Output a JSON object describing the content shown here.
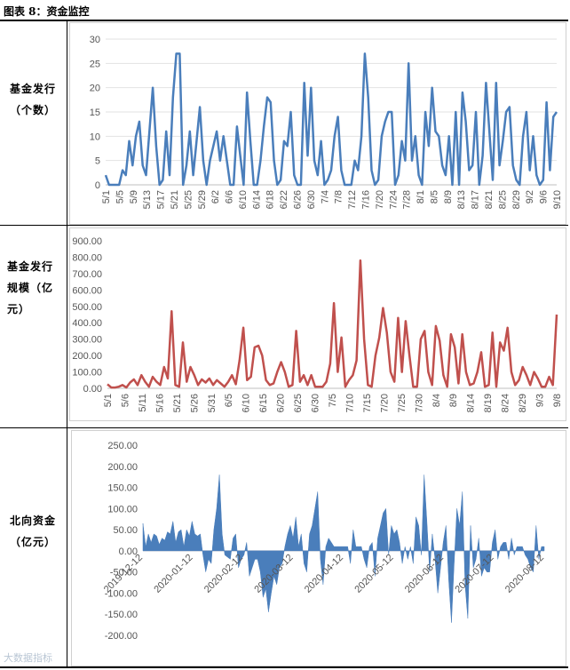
{
  "caption": "图表 8：资金监控",
  "rows": [
    {
      "label_lines": [
        "基金发行",
        "（个数）"
      ]
    },
    {
      "label_lines": [
        "基金发行",
        "规模（亿",
        "元）"
      ]
    },
    {
      "label_lines": [
        "北向资金",
        "（亿元）"
      ]
    }
  ],
  "watermark": "大数据指标",
  "chart_data": [
    {
      "type": "line",
      "title": "基金发行（个数）",
      "color": "#4a7ebb",
      "ylim": [
        0,
        30
      ],
      "yticks": [
        0,
        5,
        10,
        15,
        20,
        25,
        30
      ],
      "y_tick_labels": [
        "0",
        "5",
        "10",
        "15",
        "20",
        "25",
        "30"
      ],
      "x_tick_labels": [
        "5/1",
        "5/5",
        "5/9",
        "5/13",
        "5/17",
        "5/21",
        "5/25",
        "5/29",
        "6/2",
        "6/6",
        "6/10",
        "6/14",
        "6/18",
        "6/22",
        "6/26",
        "6/30",
        "7/4",
        "7/8",
        "7/12",
        "7/16",
        "7/20",
        "7/24",
        "7/28",
        "8/1",
        "8/5",
        "8/9",
        "8/13",
        "8/17",
        "8/21",
        "8/25",
        "8/29",
        "9/2",
        "9/6",
        "9/10"
      ],
      "values": [
        2,
        0,
        0,
        0,
        0,
        3,
        2,
        9,
        4,
        10,
        13,
        4,
        2,
        11,
        20,
        8,
        0,
        1,
        11,
        2,
        18,
        27,
        27,
        0,
        4,
        11,
        2,
        9,
        16,
        5,
        0,
        5,
        8,
        11,
        5,
        10,
        5,
        0,
        0,
        12,
        6,
        0,
        19,
        9,
        0,
        0,
        5,
        12,
        18,
        17,
        5,
        0,
        1,
        9,
        8,
        15,
        2,
        0,
        0,
        21,
        6,
        20,
        5,
        2,
        9,
        0,
        1,
        3,
        10,
        14,
        3,
        0,
        0,
        0,
        5,
        3,
        10,
        27,
        18,
        3,
        0,
        1,
        10,
        13,
        15,
        15,
        0,
        2,
        9,
        5,
        25,
        5,
        10,
        2,
        0,
        15,
        8,
        20,
        11,
        10,
        4,
        2,
        10,
        0,
        15,
        0,
        19,
        13,
        3,
        4,
        15,
        0,
        6,
        21,
        11,
        1,
        21,
        4,
        9,
        15,
        16,
        4,
        1,
        0,
        10,
        15,
        3,
        10,
        2,
        0,
        1,
        17,
        3,
        14,
        15
      ]
    },
    {
      "type": "line",
      "title": "基金发行规模（亿元）",
      "color": "#c0504d",
      "ylim": [
        0,
        900
      ],
      "yticks": [
        0,
        100,
        200,
        300,
        400,
        500,
        600,
        700,
        800,
        900
      ],
      "y_tick_labels": [
        "0.00",
        "100.00",
        "200.00",
        "300.00",
        "400.00",
        "500.00",
        "600.00",
        "700.00",
        "800.00",
        "900.00"
      ],
      "x_tick_labels": [
        "5/1",
        "5/6",
        "5/11",
        "5/16",
        "5/21",
        "5/26",
        "5/31",
        "6/5",
        "6/10",
        "6/15",
        "6/20",
        "6/25",
        "6/30",
        "7/5",
        "7/10",
        "7/15",
        "7/20",
        "7/25",
        "7/30",
        "8/4",
        "8/9",
        "8/14",
        "8/19",
        "8/24",
        "8/29",
        "9/3",
        "9/8"
      ],
      "values": [
        25,
        5,
        5,
        10,
        20,
        5,
        35,
        55,
        20,
        80,
        40,
        10,
        70,
        40,
        20,
        130,
        60,
        470,
        20,
        10,
        280,
        40,
        130,
        80,
        20,
        55,
        35,
        60,
        20,
        50,
        30,
        10,
        40,
        80,
        25,
        170,
        370,
        50,
        70,
        250,
        260,
        200,
        50,
        20,
        30,
        100,
        160,
        100,
        10,
        20,
        350,
        40,
        80,
        20,
        80,
        10,
        10,
        10,
        40,
        150,
        520,
        100,
        310,
        10,
        50,
        80,
        170,
        780,
        300,
        20,
        10,
        200,
        310,
        490,
        340,
        100,
        40,
        430,
        100,
        410,
        200,
        10,
        10,
        300,
        350,
        100,
        20,
        380,
        290,
        80,
        10,
        330,
        250,
        30,
        330,
        100,
        20,
        30,
        100,
        220,
        10,
        20,
        340,
        10,
        280,
        230,
        370,
        100,
        20,
        50,
        130,
        80,
        20,
        100,
        60,
        10,
        10,
        70,
        20,
        450
      ]
    },
    {
      "type": "area",
      "title": "北向资金（亿元）",
      "color": "#4a7ebb",
      "ylim": [
        -200,
        250
      ],
      "yticks": [
        -200,
        -150,
        -100,
        -50,
        0,
        50,
        100,
        150,
        200,
        250
      ],
      "y_tick_labels": [
        "-200.00",
        "-150.00",
        "-100.00",
        "-50.00",
        "0.00",
        "50.00",
        "100.00",
        "150.00",
        "200.00",
        "250.00"
      ],
      "x_tick_labels": [
        "2019-12-12",
        "2020-01-12",
        "2020-02-12",
        "2020-03-12",
        "2020-04-12",
        "2020-05-12",
        "2020-06-12",
        "2020-07-12",
        "2020-08-12"
      ],
      "values": [
        65,
        10,
        40,
        20,
        40,
        35,
        15,
        30,
        25,
        45,
        40,
        70,
        20,
        45,
        50,
        10,
        50,
        35,
        70,
        40,
        35,
        40,
        -10,
        -50,
        -20,
        -30,
        50,
        100,
        180,
        40,
        -10,
        -15,
        -20,
        30,
        40,
        -40,
        -20,
        -10,
        20,
        -60,
        -40,
        -20,
        -20,
        -50,
        -110,
        -90,
        -145,
        -100,
        -60,
        -80,
        -40,
        -30,
        10,
        40,
        60,
        30,
        80,
        10,
        40,
        -30,
        -50,
        40,
        60,
        100,
        140,
        -20,
        -80,
        10,
        30,
        20,
        10,
        10,
        10,
        10,
        10,
        10,
        -30,
        50,
        10,
        10,
        10,
        -20,
        -40,
        10,
        20,
        -60,
        30,
        60,
        90,
        100,
        -10,
        60,
        40,
        50,
        20,
        -30,
        10,
        -20,
        10,
        -30,
        80,
        60,
        -10,
        180,
        70,
        -50,
        40,
        -20,
        -100,
        -40,
        20,
        60,
        -70,
        -170,
        -30,
        100,
        60,
        140,
        -80,
        -160,
        60,
        -40,
        -20,
        30,
        -60,
        -40,
        -50,
        -50,
        20,
        50,
        -20,
        10,
        20,
        20,
        -20,
        30,
        -10,
        10,
        10,
        10,
        -10,
        -20,
        -40,
        -50,
        60,
        -20,
        10,
        10
      ]
    }
  ]
}
